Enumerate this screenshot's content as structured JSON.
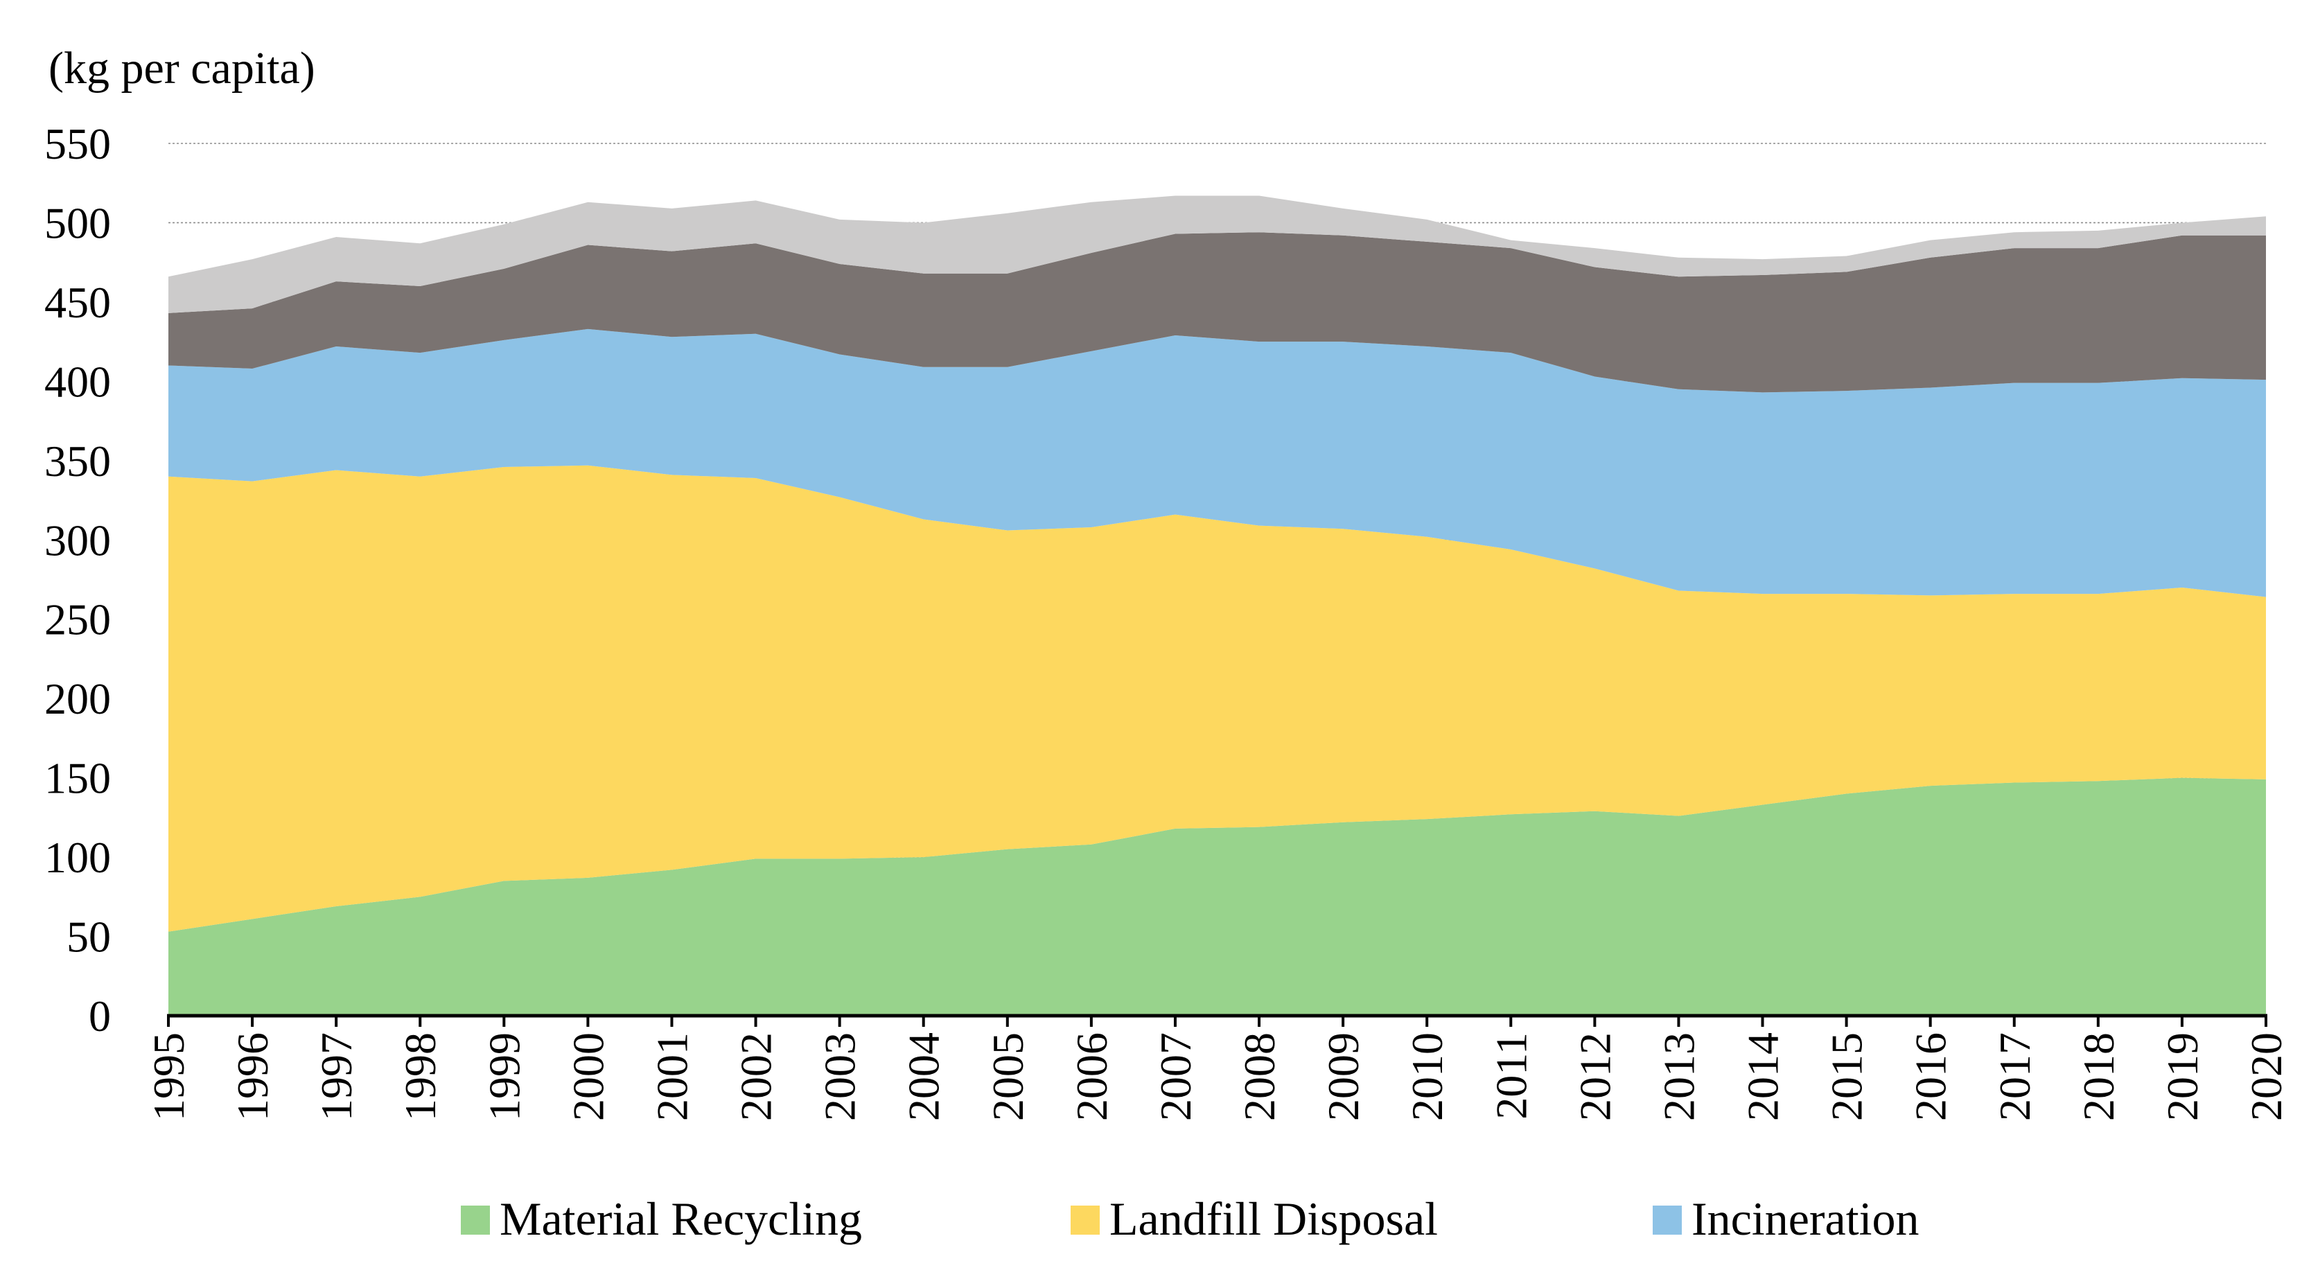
{
  "chart_data": {
    "type": "area",
    "stacked": true,
    "ylabel": "(kg per capita)",
    "xlabel": "",
    "ylim": [
      0,
      550
    ],
    "yticks": [
      0,
      50,
      100,
      150,
      200,
      250,
      300,
      350,
      400,
      450,
      500,
      550
    ],
    "grid": true,
    "legend_position": "bottom",
    "x": [
      "1995",
      "1996",
      "1997",
      "1998",
      "1999",
      "2000",
      "2001",
      "2002",
      "2003",
      "2004",
      "2005",
      "2006",
      "2007",
      "2008",
      "2009",
      "2010",
      "2011",
      "2012",
      "2013",
      "2014",
      "2015",
      "2016",
      "2017",
      "2018",
      "2019",
      "2020"
    ],
    "series": [
      {
        "name": "Material Recycling",
        "color": "#98d38c",
        "legend": true,
        "values": [
          53,
          61,
          69,
          75,
          85,
          87,
          92,
          99,
          99,
          100,
          105,
          108,
          118,
          119,
          122,
          124,
          127,
          129,
          126,
          133,
          140,
          145,
          147,
          148,
          150,
          149
        ]
      },
      {
        "name": "Landfill Disposal",
        "color": "#fdd85f",
        "legend": true,
        "values": [
          287,
          276,
          275,
          265,
          261,
          260,
          249,
          240,
          228,
          213,
          201,
          200,
          198,
          190,
          185,
          178,
          167,
          153,
          142,
          133,
          126,
          120,
          119,
          118,
          120,
          115
        ]
      },
      {
        "name": "Incineration",
        "color": "#8dc2e6",
        "legend": true,
        "values": [
          70,
          71,
          78,
          78,
          80,
          86,
          87,
          91,
          90,
          96,
          103,
          111,
          113,
          116,
          118,
          120,
          124,
          121,
          127,
          127,
          128,
          131,
          133,
          133,
          132,
          137
        ]
      },
      {
        "name": "",
        "color": "#7a7371",
        "legend": false,
        "values": [
          33,
          38,
          41,
          42,
          45,
          53,
          54,
          57,
          57,
          59,
          59,
          62,
          64,
          69,
          67,
          66,
          66,
          69,
          71,
          74,
          75,
          82,
          85,
          85,
          90,
          91
        ]
      },
      {
        "name": "",
        "color": "#cccbcb",
        "legend": false,
        "values": [
          23,
          31,
          28,
          27,
          28,
          27,
          27,
          27,
          28,
          32,
          38,
          32,
          24,
          23,
          17,
          14,
          5,
          12,
          12,
          10,
          10,
          11,
          10,
          11,
          8,
          12
        ]
      }
    ]
  }
}
